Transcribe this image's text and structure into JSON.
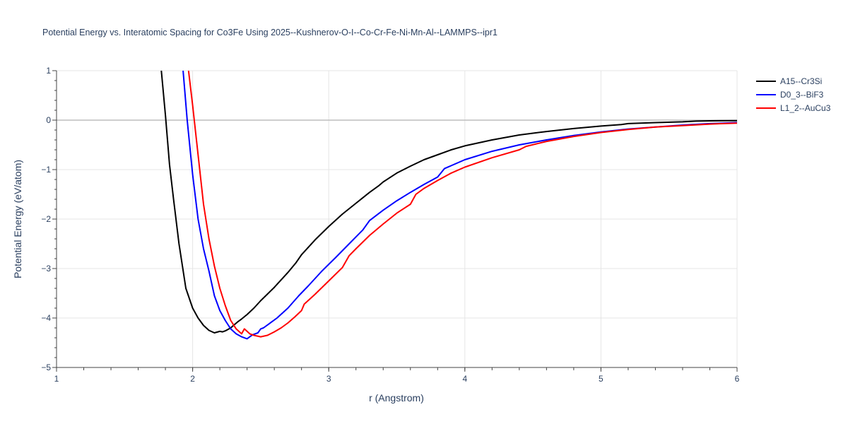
{
  "chart_data": {
    "type": "line",
    "title": "Potential Energy vs. Interatomic Spacing for Co3Fe Using 2025--Kushnerov-O-I--Co-Cr-Fe-Ni-Mn-Al--LAMMPS--ipr1",
    "xlabel": "r (Angstrom)",
    "ylabel": "Potential Energy (eV/atom)",
    "xlim": [
      1,
      6
    ],
    "ylim": [
      -5,
      1
    ],
    "xticks": [
      1,
      2,
      3,
      4,
      5,
      6
    ],
    "yticks": [
      1,
      0,
      -1,
      -2,
      -3,
      -4,
      -5
    ],
    "ytick_labels": [
      "1",
      "0",
      "−1",
      "−2",
      "−3",
      "−4",
      "−5"
    ],
    "grid": true,
    "legend_position": "top-right",
    "series": [
      {
        "name": "A15--Cr3Si",
        "color": "#000000",
        "x": [
          1.77,
          1.8,
          1.83,
          1.86,
          1.9,
          1.95,
          2.0,
          2.04,
          2.08,
          2.12,
          2.16,
          2.2,
          2.22,
          2.24,
          2.28,
          2.3,
          2.33,
          2.36,
          2.4,
          2.45,
          2.5,
          2.6,
          2.7,
          2.76,
          2.8,
          2.9,
          3.0,
          3.1,
          3.2,
          3.3,
          3.37,
          3.4,
          3.5,
          3.6,
          3.7,
          3.8,
          3.9,
          4.0,
          4.2,
          4.4,
          4.6,
          4.8,
          5.0,
          5.15,
          5.2,
          5.4,
          5.6,
          5.7,
          5.8,
          6.0
        ],
        "y": [
          1.0,
          0.1,
          -0.9,
          -1.6,
          -2.5,
          -3.4,
          -3.8,
          -4.0,
          -4.15,
          -4.25,
          -4.3,
          -4.27,
          -4.28,
          -4.26,
          -4.2,
          -4.15,
          -4.08,
          -4.02,
          -3.93,
          -3.8,
          -3.65,
          -3.38,
          -3.08,
          -2.88,
          -2.72,
          -2.42,
          -2.15,
          -1.9,
          -1.68,
          -1.46,
          -1.32,
          -1.25,
          -1.07,
          -0.93,
          -0.8,
          -0.7,
          -0.6,
          -0.52,
          -0.4,
          -0.3,
          -0.23,
          -0.17,
          -0.12,
          -0.09,
          -0.07,
          -0.05,
          -0.035,
          -0.02,
          -0.015,
          -0.01
        ]
      },
      {
        "name": "D0_3--BiF3",
        "color": "#0000ff",
        "x": [
          1.93,
          1.96,
          2.0,
          2.04,
          2.08,
          2.12,
          2.16,
          2.2,
          2.24,
          2.28,
          2.32,
          2.36,
          2.4,
          2.42,
          2.44,
          2.48,
          2.5,
          2.52,
          2.56,
          2.62,
          2.7,
          2.78,
          2.85,
          2.95,
          3.05,
          3.15,
          3.25,
          3.3,
          3.4,
          3.5,
          3.6,
          3.7,
          3.8,
          3.85,
          4.0,
          4.2,
          4.4,
          4.6,
          4.8,
          5.0,
          5.2,
          5.4,
          5.6,
          5.8,
          6.0
        ],
        "y": [
          1.0,
          0.0,
          -1.1,
          -2.0,
          -2.6,
          -3.05,
          -3.55,
          -3.85,
          -4.05,
          -4.22,
          -4.32,
          -4.38,
          -4.42,
          -4.38,
          -4.34,
          -4.3,
          -4.22,
          -4.2,
          -4.12,
          -4.0,
          -3.8,
          -3.55,
          -3.35,
          -3.05,
          -2.78,
          -2.5,
          -2.22,
          -2.03,
          -1.82,
          -1.63,
          -1.46,
          -1.3,
          -1.15,
          -0.98,
          -0.8,
          -0.63,
          -0.5,
          -0.4,
          -0.31,
          -0.24,
          -0.18,
          -0.14,
          -0.1,
          -0.07,
          -0.05
        ]
      },
      {
        "name": "L1_2--AuCu3",
        "color": "#ff0000",
        "x": [
          1.97,
          2.0,
          2.04,
          2.08,
          2.12,
          2.16,
          2.2,
          2.24,
          2.28,
          2.32,
          2.36,
          2.38,
          2.42,
          2.45,
          2.5,
          2.55,
          2.6,
          2.65,
          2.7,
          2.75,
          2.8,
          2.82,
          2.9,
          3.0,
          3.1,
          3.15,
          3.2,
          3.3,
          3.4,
          3.5,
          3.6,
          3.64,
          3.7,
          3.8,
          3.9,
          4.0,
          4.2,
          4.4,
          4.45,
          4.6,
          4.8,
          5.0,
          5.2,
          5.4,
          5.6,
          5.8,
          6.0
        ],
        "y": [
          1.0,
          0.3,
          -0.7,
          -1.7,
          -2.4,
          -2.95,
          -3.4,
          -3.75,
          -4.05,
          -4.22,
          -4.32,
          -4.22,
          -4.32,
          -4.35,
          -4.38,
          -4.35,
          -4.28,
          -4.2,
          -4.1,
          -3.98,
          -3.85,
          -3.72,
          -3.52,
          -3.25,
          -2.98,
          -2.74,
          -2.6,
          -2.33,
          -2.1,
          -1.88,
          -1.7,
          -1.5,
          -1.38,
          -1.22,
          -1.07,
          -0.95,
          -0.76,
          -0.6,
          -0.53,
          -0.43,
          -0.33,
          -0.25,
          -0.19,
          -0.14,
          -0.11,
          -0.08,
          -0.06
        ]
      }
    ]
  }
}
